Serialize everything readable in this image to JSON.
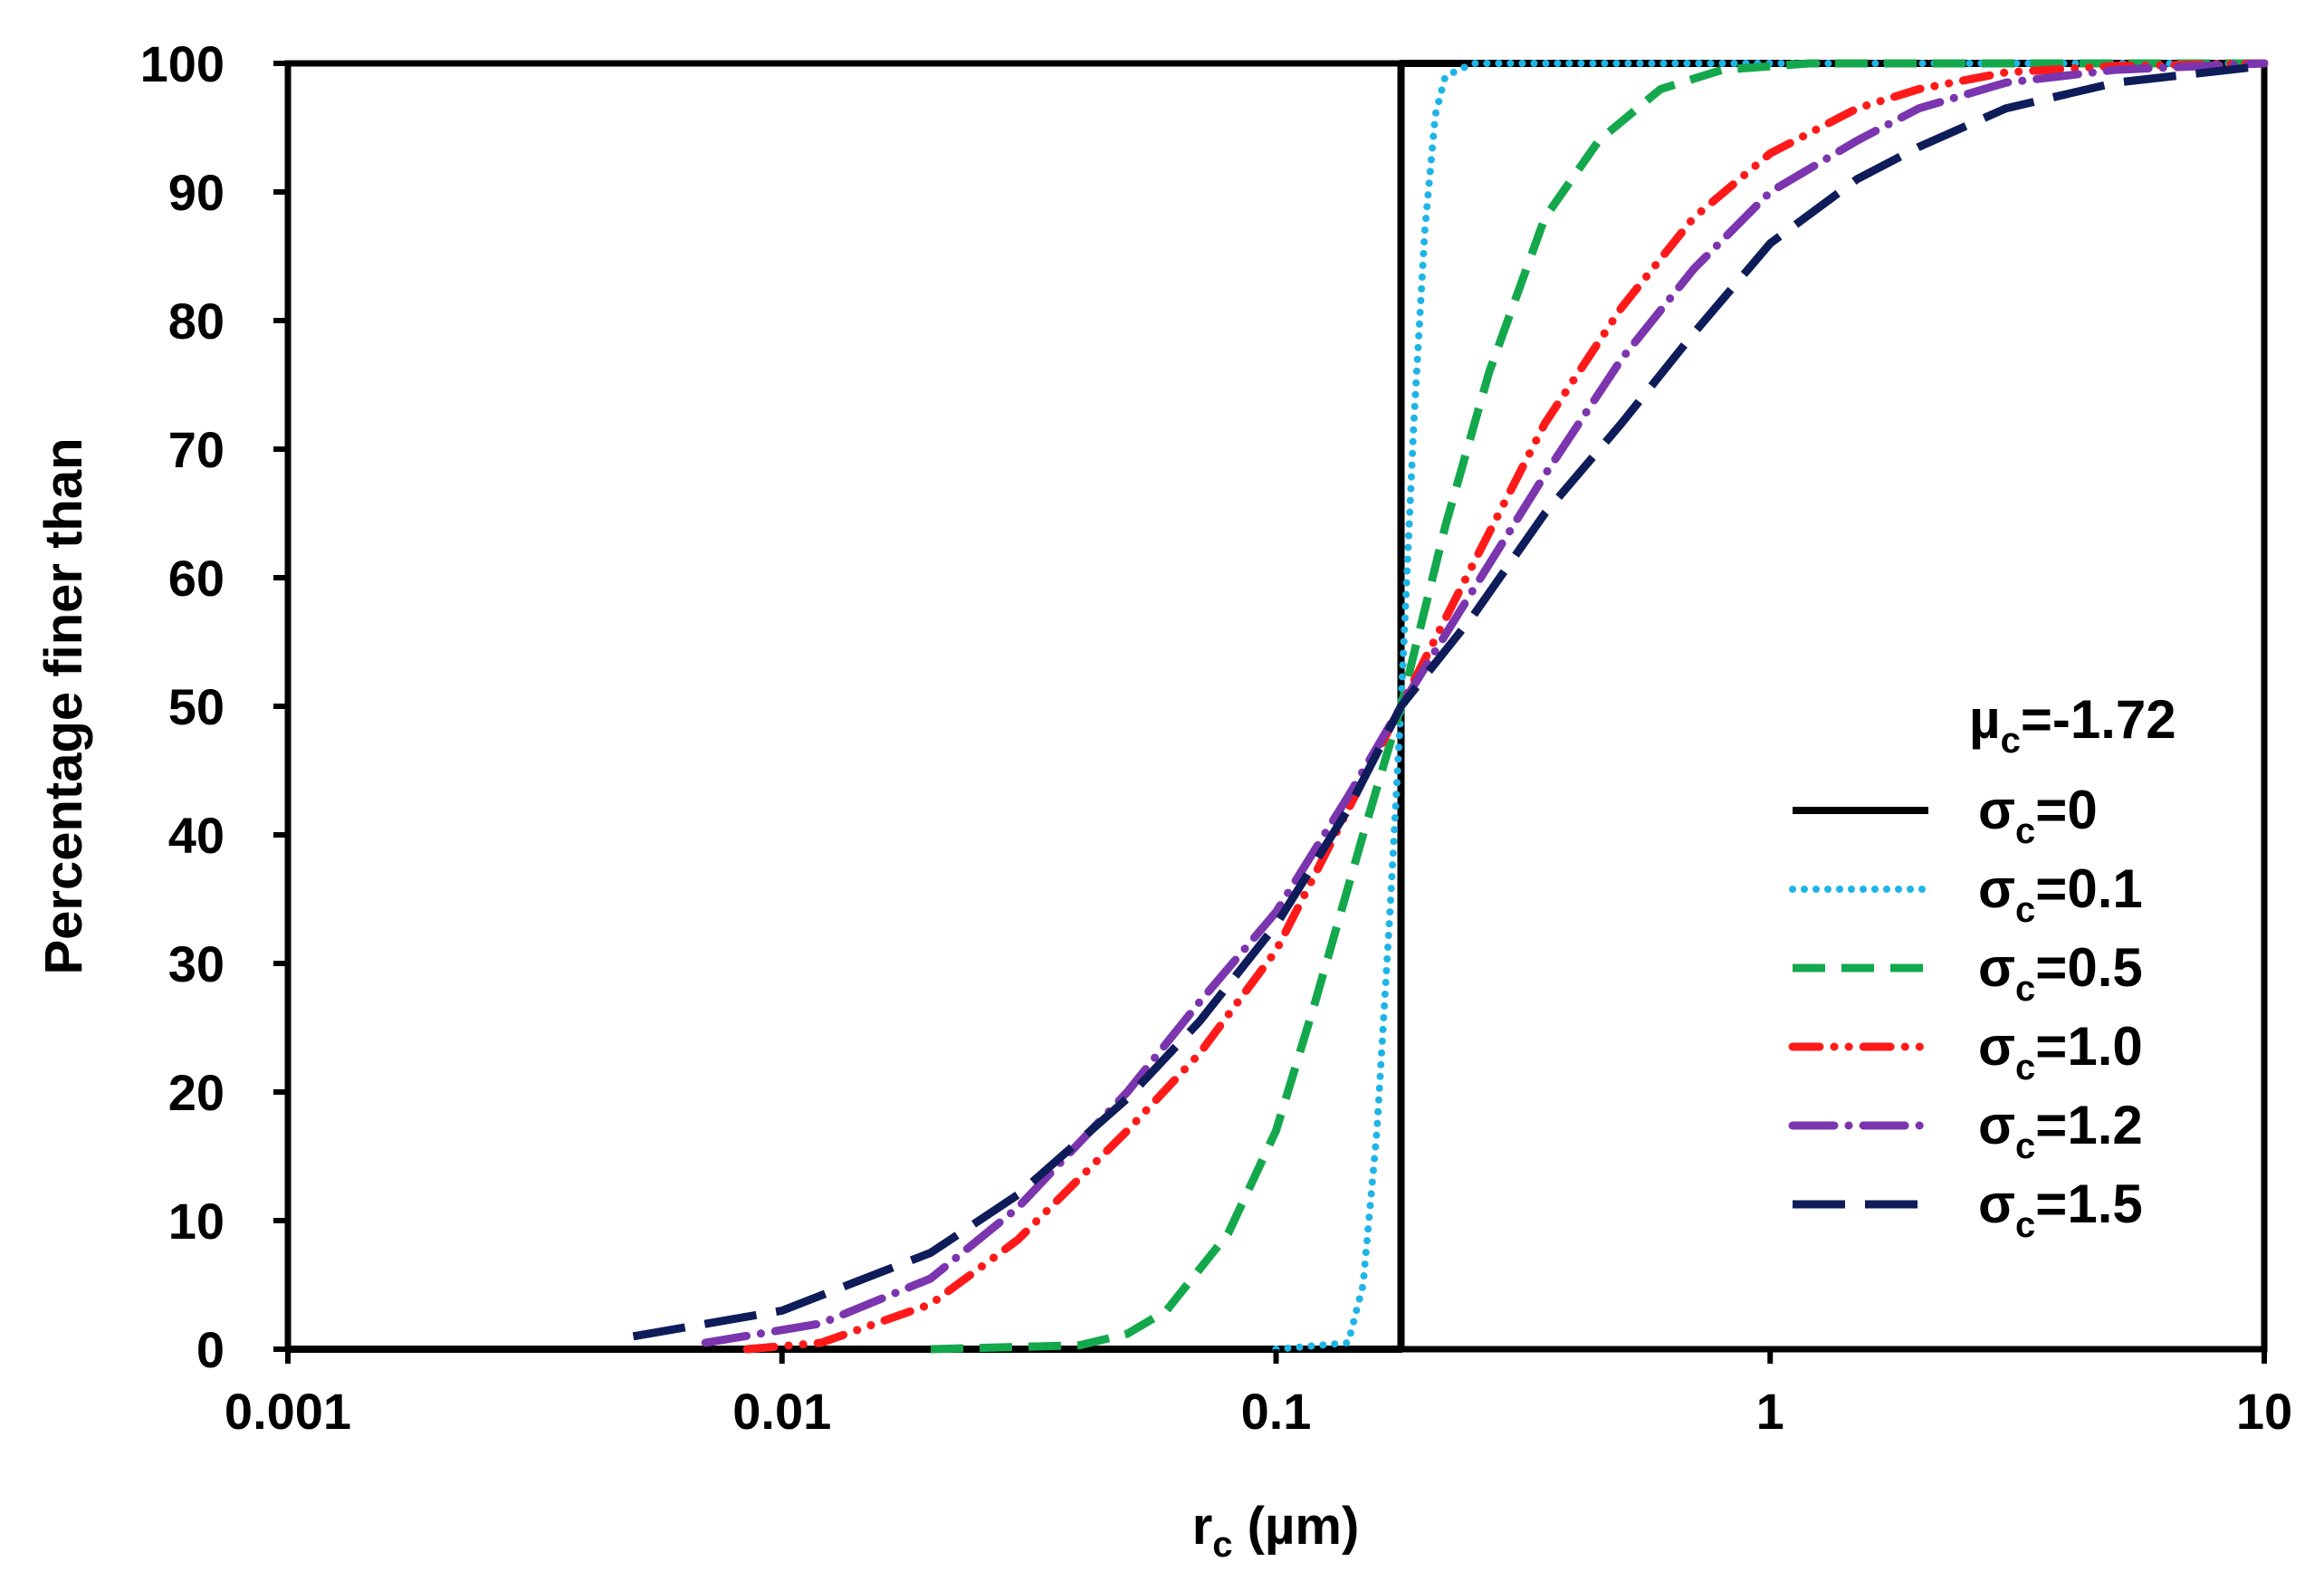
{
  "chart_data": {
    "type": "line",
    "title": "",
    "xlabel": {
      "main": "r",
      "sub": "c",
      "unit": " (µm)"
    },
    "ylabel": "Percentage finer than",
    "xscale": "log",
    "xlim": [
      0.001,
      10
    ],
    "ylim": [
      0,
      100
    ],
    "xticks": [
      {
        "value": 0.001,
        "label": "0.001"
      },
      {
        "value": 0.01,
        "label": "0.01"
      },
      {
        "value": 0.1,
        "label": "0.1"
      },
      {
        "value": 1,
        "label": "1"
      },
      {
        "value": 10,
        "label": "10"
      }
    ],
    "yticks": [
      {
        "value": 0,
        "label": "0"
      },
      {
        "value": 10,
        "label": "10"
      },
      {
        "value": 20,
        "label": "20"
      },
      {
        "value": 30,
        "label": "30"
      },
      {
        "value": 40,
        "label": "40"
      },
      {
        "value": 50,
        "label": "50"
      },
      {
        "value": 60,
        "label": "60"
      },
      {
        "value": 70,
        "label": "70"
      },
      {
        "value": 80,
        "label": "80"
      },
      {
        "value": 90,
        "label": "90"
      },
      {
        "value": 100,
        "label": "100"
      }
    ],
    "grid": false,
    "legend": {
      "position": "right",
      "title_main": "µ",
      "title_sub": "c",
      "title_value": "=-1.72"
    },
    "series": [
      {
        "name": "σc=0",
        "label_main": "σ",
        "label_sub": "c",
        "label_value": "=0",
        "sigma": 0,
        "color": "#000000",
        "style": "solid",
        "x": [
          0.001,
          0.179,
          0.179,
          10
        ],
        "y": [
          0,
          0,
          100,
          100
        ]
      },
      {
        "name": "σc=0.1",
        "label_main": "σ",
        "label_sub": "c",
        "label_value": "=0.1",
        "sigma": 0.1,
        "color": "#1EB4E8",
        "style": "dot",
        "x": [
          0.1,
          0.14,
          0.15,
          0.16,
          0.17,
          0.179,
          0.19,
          0.2,
          0.21,
          0.22,
          0.25,
          10
        ],
        "y": [
          0,
          0.5,
          5,
          17,
          34,
          50,
          72,
          87,
          96,
          99,
          100,
          100
        ]
      },
      {
        "name": "σc=0.5",
        "label_main": "σ",
        "label_sub": "c",
        "label_value": "=0.5",
        "sigma": 0.5,
        "color": "#14A84C",
        "style": "dash",
        "x": [
          0.02,
          0.04,
          0.05,
          0.06,
          0.08,
          0.1,
          0.12,
          0.15,
          0.179,
          0.22,
          0.27,
          0.35,
          0.45,
          0.6,
          0.8,
          1.2,
          10
        ],
        "y": [
          0,
          0.3,
          1.2,
          3,
          9,
          17,
          27,
          40,
          50,
          64,
          76,
          88,
          94,
          98,
          99.5,
          100,
          100
        ]
      },
      {
        "name": "σc=1.0",
        "label_main": "σ",
        "label_sub": "c",
        "label_value": "=1.0",
        "sigma": 1.0,
        "color": "#FF1A1A",
        "style": "dashdotdot",
        "x": [
          0.0085,
          0.012,
          0.02,
          0.03,
          0.05,
          0.07,
          0.1,
          0.14,
          0.179,
          0.25,
          0.35,
          0.5,
          0.7,
          1,
          1.5,
          2,
          3,
          5,
          10
        ],
        "y": [
          0,
          0.5,
          3.5,
          8.5,
          17,
          23,
          31,
          42,
          50,
          61,
          72,
          81,
          88,
          93,
          96.5,
          98,
          99.3,
          99.8,
          100
        ]
      },
      {
        "name": "σc=1.2",
        "label_main": "σ",
        "label_sub": "c",
        "label_value": "=1.2",
        "sigma": 1.2,
        "color": "#7B35AE",
        "style": "longdashdot",
        "x": [
          0.007,
          0.012,
          0.02,
          0.03,
          0.05,
          0.07,
          0.1,
          0.14,
          0.179,
          0.25,
          0.35,
          0.5,
          0.7,
          1,
          1.5,
          2,
          3,
          5,
          10
        ],
        "y": [
          0.5,
          2,
          5.5,
          11,
          20,
          27,
          34,
          43,
          50,
          59,
          68,
          77,
          84,
          90,
          94,
          96.5,
          98.5,
          99.5,
          100
        ]
      },
      {
        "name": "σc=1.5",
        "label_main": "σ",
        "label_sub": "c",
        "label_value": "=1.5",
        "sigma": 1.5,
        "color": "#0F1C5A",
        "style": "longdash",
        "x": [
          0.005,
          0.01,
          0.02,
          0.03,
          0.05,
          0.07,
          0.1,
          0.14,
          0.179,
          0.25,
          0.35,
          0.5,
          0.7,
          1,
          1.5,
          2,
          3,
          5,
          10
        ],
        "y": [
          1,
          3,
          7.5,
          12,
          19.5,
          25.5,
          33,
          42,
          50,
          57,
          65,
          72,
          79,
          86,
          91,
          93.5,
          96.5,
          98.5,
          99.8
        ]
      }
    ]
  }
}
